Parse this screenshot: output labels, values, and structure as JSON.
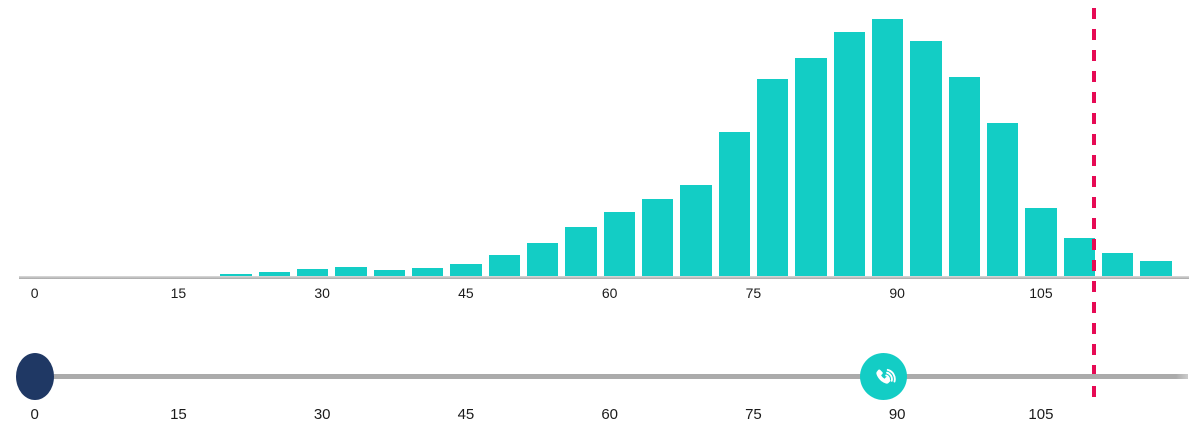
{
  "page": {
    "background": "#FFFFFF"
  },
  "chart_data": {
    "type": "bar",
    "subtype": "histogram",
    "title": "",
    "xlabel": "",
    "ylabel": "",
    "grid": false,
    "legend": false,
    "y_axis_shown": false,
    "x_ticks": [
      0,
      15,
      30,
      45,
      60,
      75,
      90,
      105
    ],
    "x_tick_labels": [
      "0",
      "15",
      "30",
      "45",
      "60",
      "75",
      "90",
      "105"
    ],
    "xlim": [
      -4,
      121
    ],
    "bin_width": 4,
    "bin_centers": [
      21,
      25,
      29,
      33,
      37,
      41,
      45,
      49,
      53,
      57,
      61,
      65,
      69,
      73,
      77,
      81,
      85,
      89,
      93,
      97,
      101,
      105,
      109,
      113,
      117
    ],
    "values": [
      3,
      5,
      8,
      10,
      7,
      9,
      13,
      22,
      34,
      50,
      65,
      78,
      92,
      145,
      198,
      219,
      245,
      258,
      236,
      200,
      154,
      69,
      39,
      24,
      16
    ],
    "y_unit": "px",
    "ylim": [
      0,
      270
    ],
    "bar_color": "#13CDC5",
    "axis_line_color": "#ACACAC",
    "tick_label_color": "#1B1B1B",
    "threshold_line": {
      "x": 110.5,
      "color": "#E60A54",
      "style": "dashed"
    }
  },
  "slider": {
    "tick_values": [
      0,
      15,
      30,
      45,
      60,
      75,
      90,
      105
    ],
    "tick_labels": [
      "0",
      "15",
      "30",
      "45",
      "60",
      "75",
      "90",
      "105"
    ],
    "track_color": "#ABABAB",
    "start_handle": {
      "value": 0,
      "color": "#1F3864"
    },
    "phone_handle": {
      "value": 88.6,
      "color": "#13CDC5",
      "icon": "phone-volume-icon",
      "icon_color": "#FFFFFF"
    }
  }
}
